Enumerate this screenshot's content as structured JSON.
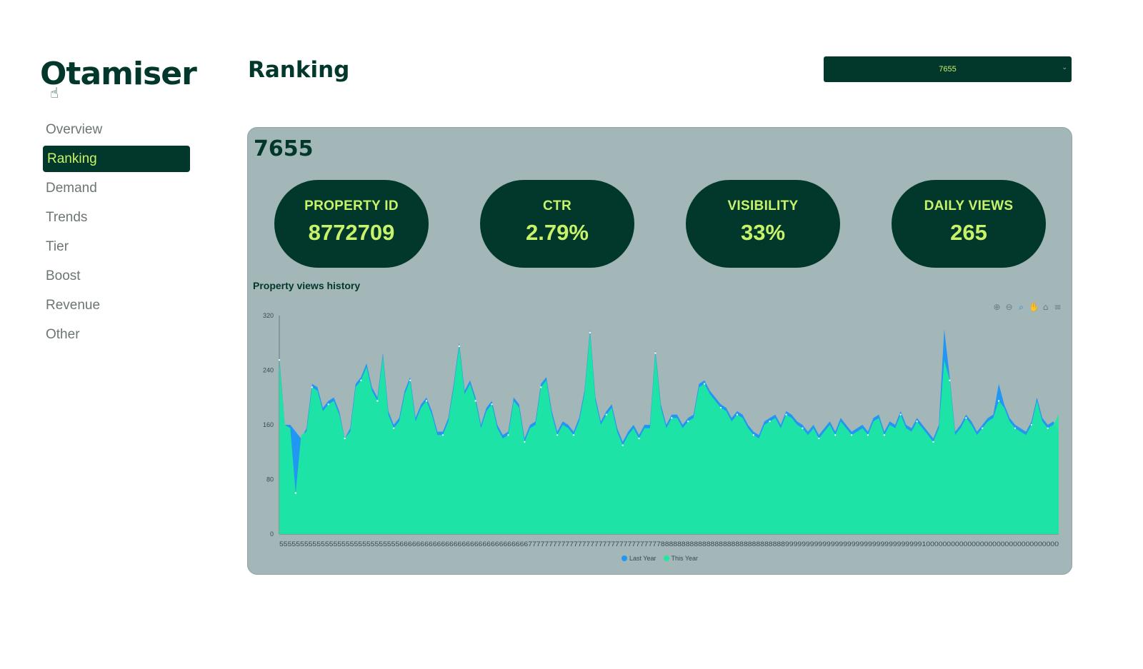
{
  "app": {
    "logo": "Otamiser"
  },
  "sidebar": {
    "items": [
      {
        "label": "Overview"
      },
      {
        "label": "Ranking",
        "active": true
      },
      {
        "label": "Demand"
      },
      {
        "label": "Trends"
      },
      {
        "label": "Tier"
      },
      {
        "label": "Boost"
      },
      {
        "label": "Revenue"
      },
      {
        "label": "Other"
      }
    ]
  },
  "header": {
    "title": "Ranking"
  },
  "property_select": {
    "value": "7655"
  },
  "card": {
    "title": "7655",
    "kpis": [
      {
        "label": "PROPERTY ID",
        "value": "8772709"
      },
      {
        "label": "CTR",
        "value": "2.79%"
      },
      {
        "label": "VISIBILITY",
        "value": "33%"
      },
      {
        "label": "DAILY VIEWS",
        "value": "265"
      }
    ]
  },
  "colors": {
    "accent": "#c9f26b",
    "dark_green": "#02382b",
    "last_year": "#2196f3",
    "this_year": "#1de9a0"
  },
  "chart_toolbar": [
    "zoom-in-icon",
    "zoom-out-icon",
    "magnifier-icon",
    "pan-hand-icon",
    "home-icon",
    "menu-icon"
  ],
  "chart_data": {
    "type": "area",
    "title": "Property views history",
    "ylim": [
      0,
      320
    ],
    "yticks": [
      0,
      80,
      160,
      240,
      320
    ],
    "x_tick_label_text": "55555555555555555555555555555666666666666666666666666666666677777777777777777777777777777777888888888888888888888888888888999999999999999999999999999999999100000000000000000000000000000000",
    "series": [
      {
        "name": "Last Year",
        "color": "#2196f3",
        "values": [
          260,
          160,
          160,
          150,
          140,
          155,
          220,
          215,
          185,
          195,
          200,
          180,
          140,
          155,
          220,
          230,
          250,
          215,
          200,
          265,
          180,
          160,
          170,
          210,
          230,
          170,
          190,
          200,
          180,
          150,
          150,
          170,
          220,
          280,
          210,
          225,
          200,
          160,
          185,
          195,
          160,
          145,
          150,
          200,
          190,
          140,
          160,
          165,
          220,
          230,
          180,
          150,
          165,
          160,
          150,
          170,
          210,
          300,
          200,
          165,
          180,
          190,
          155,
          135,
          150,
          160,
          145,
          160,
          160,
          270,
          190,
          160,
          175,
          175,
          160,
          170,
          175,
          220,
          225,
          210,
          200,
          190,
          185,
          170,
          180,
          175,
          160,
          150,
          145,
          165,
          170,
          175,
          160,
          180,
          175,
          165,
          160,
          150,
          160,
          145,
          155,
          165,
          150,
          170,
          160,
          150,
          155,
          160,
          150,
          170,
          175,
          150,
          165,
          160,
          180,
          160,
          155,
          170,
          160,
          150,
          140,
          160,
          300,
          230,
          150,
          160,
          175,
          165,
          150,
          160,
          170,
          175,
          220,
          190,
          170,
          160,
          155,
          150,
          165,
          200,
          170,
          160,
          165,
          150
        ]
      },
      {
        "name": "This Year",
        "values": [
          255,
          160,
          155,
          60,
          145,
          150,
          215,
          210,
          180,
          190,
          195,
          175,
          140,
          150,
          215,
          225,
          245,
          210,
          195,
          260,
          175,
          155,
          165,
          205,
          225,
          165,
          185,
          195,
          175,
          145,
          145,
          165,
          215,
          275,
          205,
          220,
          195,
          155,
          180,
          190,
          155,
          140,
          145,
          195,
          185,
          135,
          155,
          160,
          215,
          225,
          175,
          145,
          160,
          155,
          145,
          165,
          205,
          295,
          195,
          160,
          175,
          185,
          150,
          130,
          145,
          155,
          140,
          155,
          155,
          265,
          185,
          155,
          170,
          170,
          155,
          165,
          170,
          215,
          220,
          205,
          195,
          185,
          180,
          165,
          175,
          170,
          155,
          145,
          140,
          160,
          165,
          170,
          155,
          175,
          170,
          160,
          155,
          145,
          155,
          140,
          150,
          160,
          145,
          165,
          155,
          145,
          150,
          155,
          145,
          165,
          170,
          145,
          160,
          155,
          175,
          155,
          150,
          165,
          155,
          145,
          135,
          155,
          255,
          225,
          145,
          155,
          170,
          160,
          145,
          155,
          165,
          170,
          195,
          185,
          165,
          155,
          150,
          145,
          160,
          195,
          165,
          155,
          160,
          175
        ]
      }
    ],
    "legend_position": "bottom-center"
  }
}
